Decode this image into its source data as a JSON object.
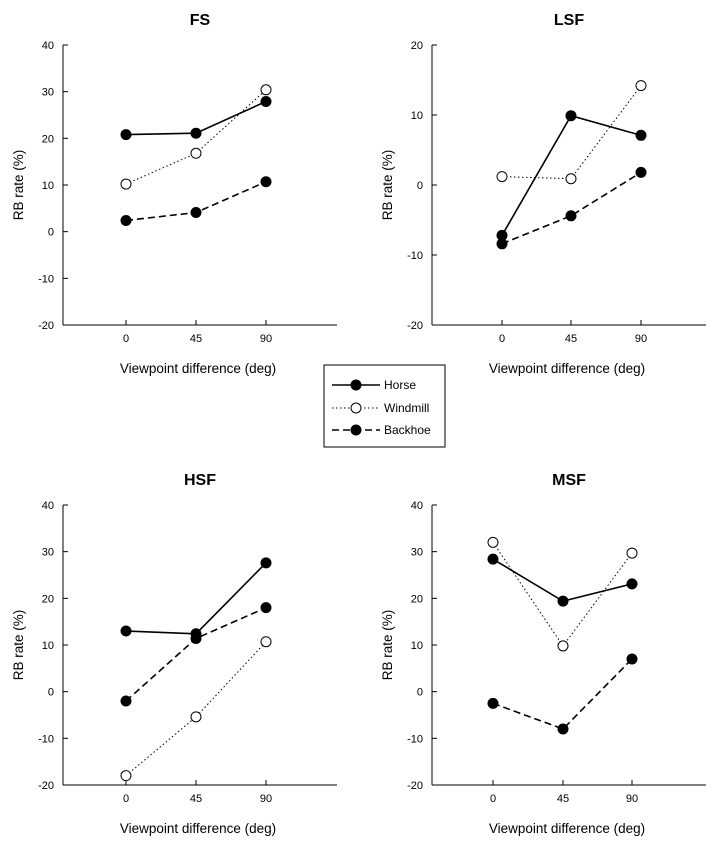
{
  "legend": {
    "items": [
      {
        "name": "Horse",
        "style": "solid",
        "marker": "filled"
      },
      {
        "name": "Windmill",
        "style": "dotted",
        "marker": "open"
      },
      {
        "name": "Backhoe",
        "style": "dashed",
        "marker": "filled"
      }
    ],
    "placement": "center"
  },
  "chart_data": [
    {
      "type": "line",
      "title": "FS",
      "xlabel": "Viewpoint difference (deg)",
      "ylabel": "RB rate (%)",
      "categories": [
        "0",
        "45",
        "90"
      ],
      "ylim": [
        -20,
        40
      ],
      "yticks": [
        -20,
        -10,
        0,
        10,
        20,
        30,
        40
      ],
      "series": [
        {
          "name": "Horse",
          "values": [
            20.8,
            21.1,
            27.9
          ]
        },
        {
          "name": "Windmill",
          "values": [
            10.2,
            16.8,
            30.4
          ]
        },
        {
          "name": "Backhoe",
          "values": [
            2.4,
            4.1,
            10.7
          ]
        }
      ]
    },
    {
      "type": "line",
      "title": "LSF",
      "xlabel": "Viewpoint difference (deg)",
      "ylabel": "RB rate (%)",
      "categories": [
        "0",
        "45",
        "90"
      ],
      "ylim": [
        -20,
        20
      ],
      "yticks": [
        -20,
        -10,
        0,
        10,
        20
      ],
      "series": [
        {
          "name": "Horse",
          "values": [
            -7.2,
            9.9,
            7.1
          ]
        },
        {
          "name": "Windmill",
          "values": [
            1.2,
            0.9,
            14.2
          ]
        },
        {
          "name": "Backhoe",
          "values": [
            -8.4,
            -4.4,
            1.8
          ]
        }
      ]
    },
    {
      "type": "line",
      "title": "HSF",
      "xlabel": "Viewpoint difference (deg)",
      "ylabel": "RB rate (%)",
      "categories": [
        "0",
        "45",
        "90"
      ],
      "ylim": [
        -20,
        40
      ],
      "yticks": [
        -20,
        -10,
        0,
        10,
        20,
        30,
        40
      ],
      "series": [
        {
          "name": "Horse",
          "values": [
            13.0,
            12.4,
            27.6
          ]
        },
        {
          "name": "Windmill",
          "values": [
            -18.0,
            -5.4,
            10.7
          ]
        },
        {
          "name": "Backhoe",
          "values": [
            -2.0,
            11.4,
            18.0
          ]
        }
      ]
    },
    {
      "type": "line",
      "title": "MSF",
      "xlabel": "Viewpoint difference (deg)",
      "ylabel": "RB rate (%)",
      "categories": [
        "0",
        "45",
        "90"
      ],
      "ylim": [
        -20,
        40
      ],
      "yticks": [
        -20,
        -10,
        0,
        10,
        20,
        30,
        40
      ],
      "series": [
        {
          "name": "Horse",
          "values": [
            28.4,
            19.4,
            23.1
          ]
        },
        {
          "name": "Windmill",
          "values": [
            32.0,
            9.8,
            29.7
          ]
        },
        {
          "name": "Backhoe",
          "values": [
            -2.5,
            -8.0,
            7.0
          ]
        }
      ]
    }
  ]
}
